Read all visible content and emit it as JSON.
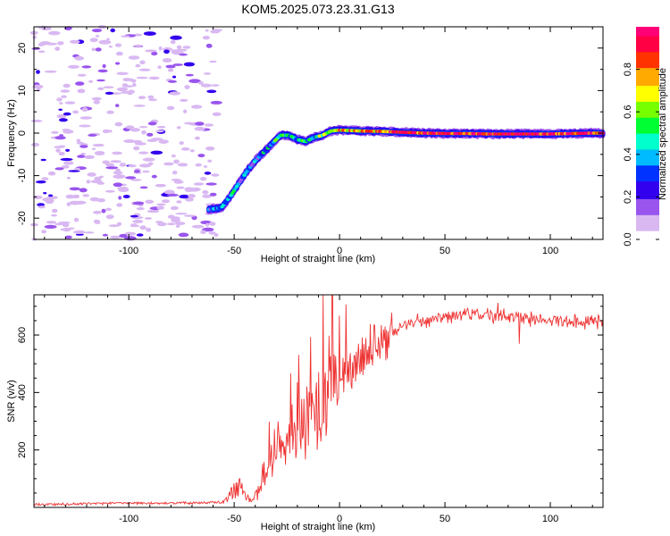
{
  "title": "KOM5.2025.073.23.31.G13",
  "chart_data": [
    {
      "type": "heatmap",
      "xlabel": "Height of straight line (km)",
      "ylabel": "Frequency (Hz)",
      "xlim": [
        -145,
        125
      ],
      "ylim": [
        -25,
        25
      ],
      "xticks": [
        -100,
        -50,
        0,
        50,
        100
      ],
      "yticks": [
        -20,
        -10,
        0,
        10,
        20
      ],
      "colorbar": {
        "label": "Normalized spectral amplitude",
        "range": [
          0,
          1
        ],
        "ticks": [
          0.0,
          0.2,
          0.4,
          0.6,
          0.8
        ],
        "tick_labels": [
          "0.0",
          "0.2",
          "0.4",
          "0.6",
          "0.8"
        ],
        "colors": [
          "#ffffff",
          "#d9b8f2",
          "#9a55ee",
          "#3300ee",
          "#0033ff",
          "#00bbff",
          "#00ffcc",
          "#00ff33",
          "#77ff00",
          "#ffff00",
          "#ffaa00",
          "#ff3300",
          "#ff0044",
          "#ff0077"
        ]
      },
      "ridge": {
        "x": [
          -62,
          -56,
          -52,
          -48,
          -44,
          -40,
          -36,
          -32,
          -28,
          -24,
          -20,
          -16,
          -12,
          -8,
          -4,
          0,
          5,
          10,
          20,
          30,
          40,
          50,
          60,
          70,
          80,
          90,
          100,
          110,
          120,
          125
        ],
        "y": [
          -18,
          -17.5,
          -15,
          -12,
          -9,
          -6.5,
          -4.5,
          -2.5,
          -0.5,
          -0.5,
          -1.5,
          -2,
          -1,
          -0.5,
          0.5,
          0.7,
          0.6,
          0.5,
          0.4,
          0.2,
          0,
          -0.1,
          -0.1,
          -0.2,
          -0.2,
          -0.2,
          -0.2,
          -0.1,
          0,
          0
        ],
        "amplitude": [
          0.3,
          0.4,
          0.35,
          0.35,
          0.35,
          0.3,
          0.35,
          0.4,
          0.5,
          0.45,
          0.4,
          0.45,
          0.5,
          0.6,
          0.7,
          0.75,
          0.8,
          0.75,
          0.8,
          0.85,
          0.9,
          0.95,
          0.95,
          0.95,
          0.95,
          0.95,
          0.9,
          0.9,
          0.9,
          0.9
        ]
      },
      "noise_region_x": [
        -145,
        -58
      ]
    },
    {
      "type": "line",
      "xlabel": "Height of straight line (km)",
      "ylabel": "SNR (v/v)",
      "xlim": [
        -145,
        125
      ],
      "ylim": [
        0,
        740
      ],
      "xticks": [
        -100,
        -50,
        0,
        50,
        100
      ],
      "yticks": [
        200,
        400,
        600
      ],
      "color": "#ee3333",
      "x": [
        -145,
        -130,
        -110,
        -90,
        -70,
        -55,
        -52,
        -48,
        -45,
        -42,
        -38,
        -34,
        -30,
        -26,
        -22,
        -18,
        -14,
        -10,
        -6,
        -2,
        2,
        6,
        10,
        15,
        20,
        25,
        30,
        35,
        40,
        45,
        50,
        55,
        60,
        65,
        70,
        75,
        80,
        85,
        90,
        95,
        100,
        105,
        110,
        115,
        120,
        125
      ],
      "y": [
        10,
        12,
        14,
        15,
        15,
        18,
        40,
        80,
        50,
        15,
        60,
        150,
        190,
        230,
        250,
        280,
        320,
        350,
        380,
        420,
        460,
        490,
        520,
        560,
        590,
        610,
        630,
        645,
        650,
        655,
        660,
        665,
        668,
        670,
        672,
        668,
        665,
        660,
        655,
        652,
        650,
        648,
        646,
        645,
        644,
        643
      ]
    }
  ]
}
